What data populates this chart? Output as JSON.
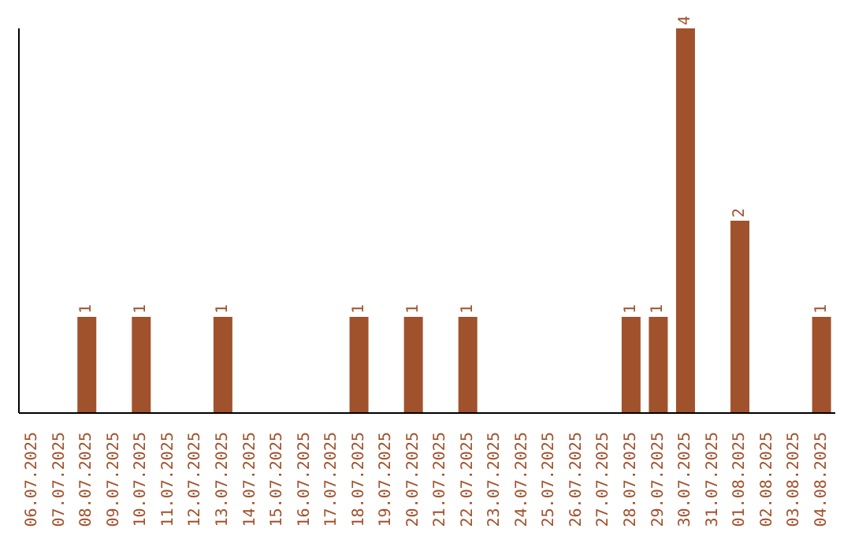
{
  "chart_data": {
    "type": "bar",
    "categories": [
      "06.07.2025",
      "07.07.2025",
      "08.07.2025",
      "09.07.2025",
      "10.07.2025",
      "11.07.2025",
      "12.07.2025",
      "13.07.2025",
      "14.07.2025",
      "15.07.2025",
      "16.07.2025",
      "17.07.2025",
      "18.07.2025",
      "19.07.2025",
      "20.07.2025",
      "21.07.2025",
      "22.07.2025",
      "23.07.2025",
      "24.07.2025",
      "25.07.2025",
      "26.07.2025",
      "27.07.2025",
      "28.07.2025",
      "29.07.2025",
      "30.07.2025",
      "31.07.2025",
      "01.08.2025",
      "02.08.2025",
      "03.08.2025",
      "04.08.2025"
    ],
    "values": [
      0,
      0,
      1,
      0,
      1,
      0,
      0,
      1,
      0,
      0,
      0,
      0,
      1,
      0,
      1,
      0,
      1,
      0,
      0,
      0,
      0,
      0,
      1,
      1,
      4,
      0,
      2,
      0,
      0,
      1
    ],
    "value_labels": [
      null,
      null,
      "1",
      null,
      "1",
      null,
      null,
      "1",
      null,
      null,
      null,
      null,
      "1",
      null,
      "1",
      null,
      "1",
      null,
      null,
      null,
      null,
      null,
      "1",
      "1",
      "4",
      null,
      "2",
      null,
      null,
      "1"
    ],
    "color": "#a0522d",
    "grid": false,
    "legend": false
  }
}
